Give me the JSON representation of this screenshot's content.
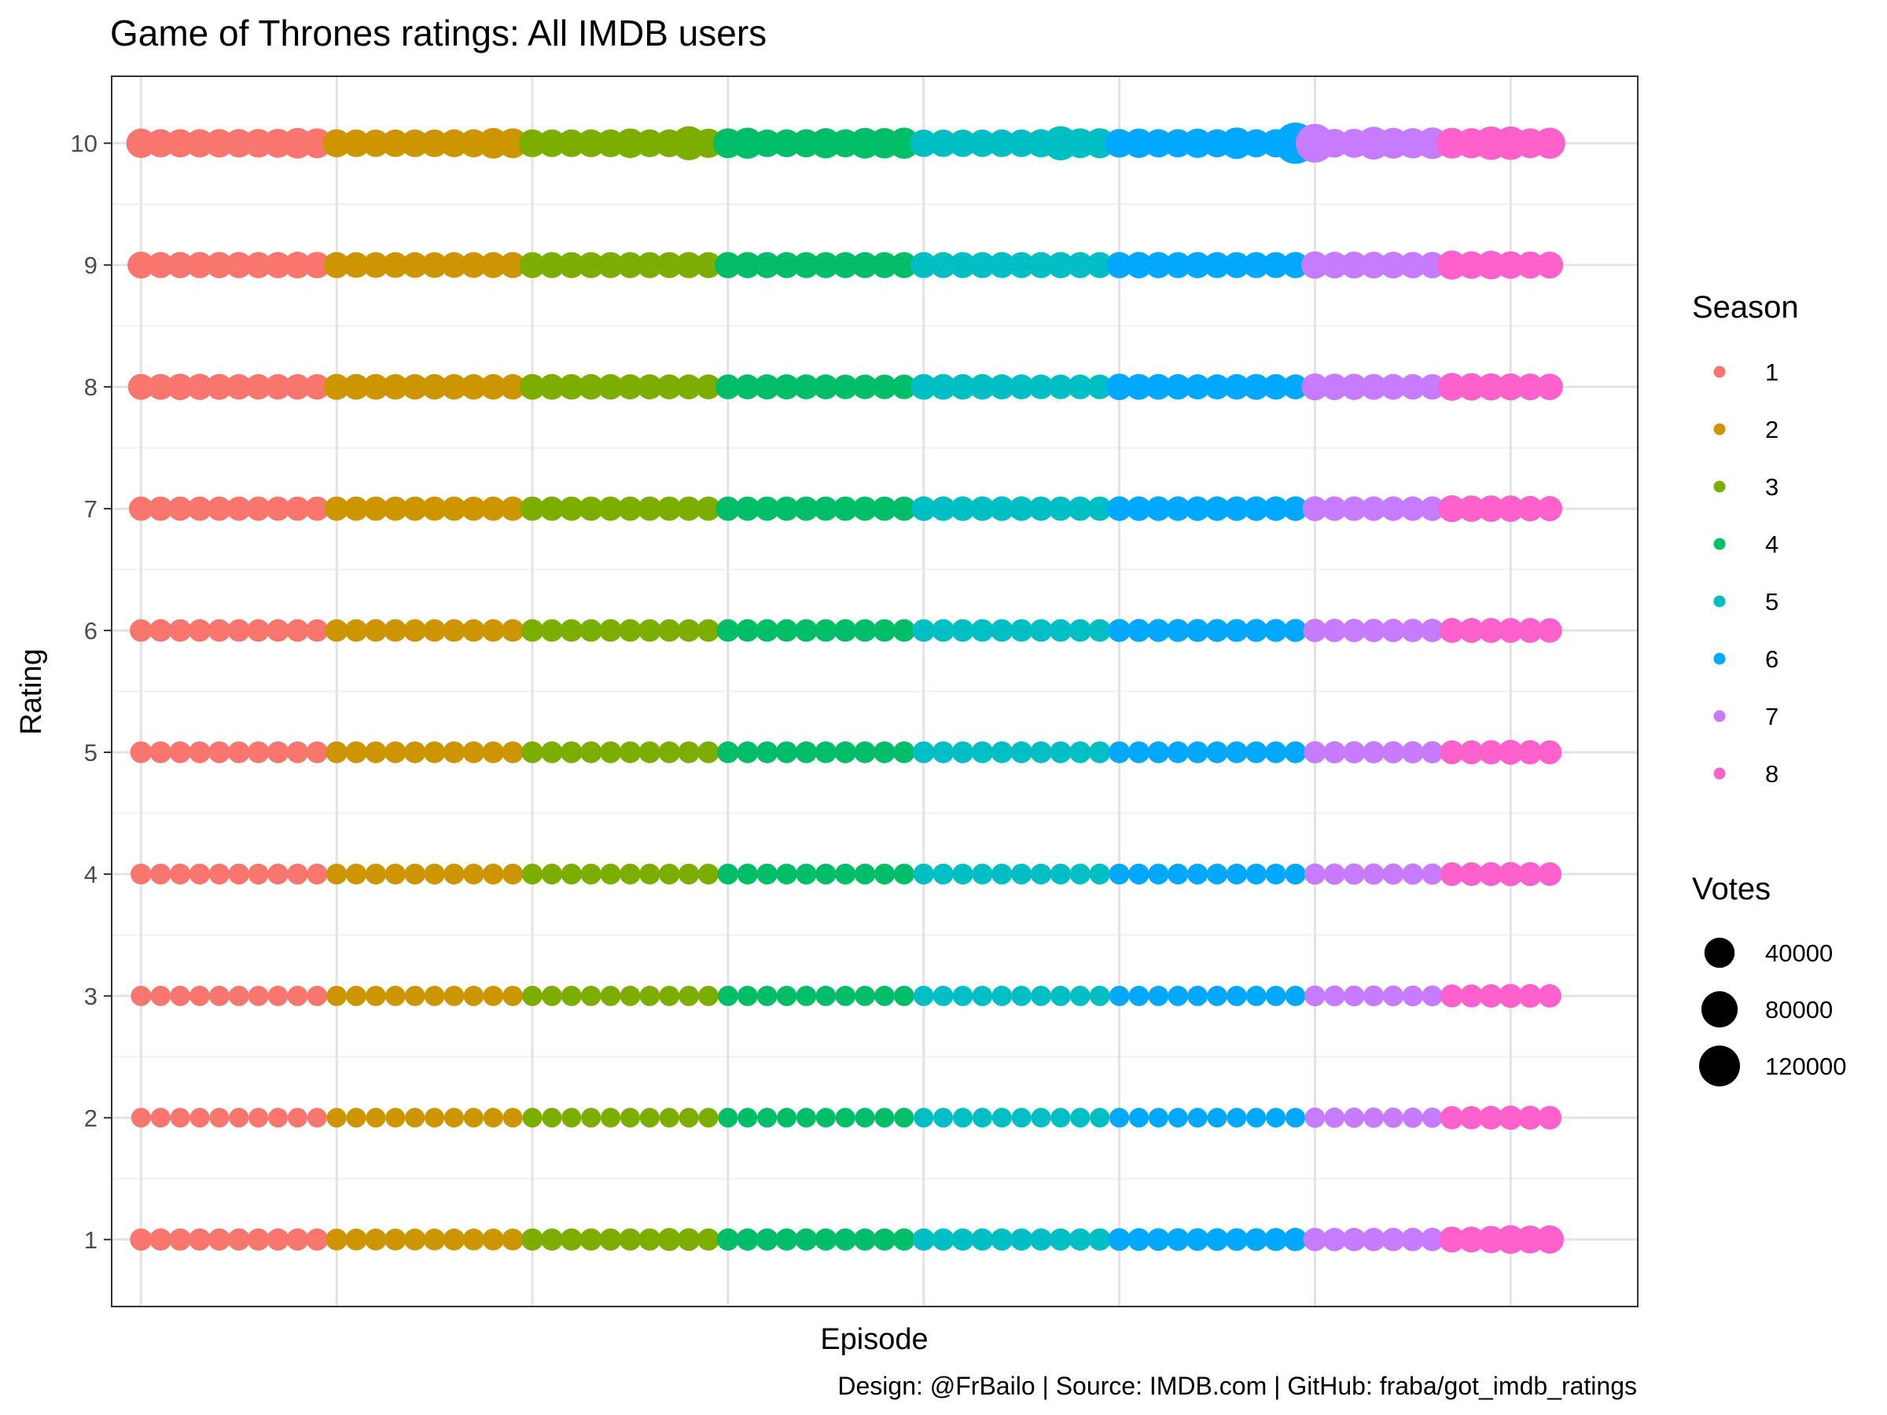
{
  "chart_data": {
    "type": "scatter",
    "title": "Game of Thrones ratings: All IMDB users",
    "xlabel": "Episode",
    "ylabel": "Rating",
    "caption": "Design: @FrBailo | Source: IMDB.com | GitHub: fraba/got_imdb_ratings",
    "xlim": [
      -1.5,
      76.5
    ],
    "ylim": [
      0.45,
      10.55
    ],
    "yticks": [
      1,
      2,
      3,
      4,
      5,
      6,
      7,
      8,
      9,
      10
    ],
    "grid": true,
    "legend_position": "right",
    "colors": {
      "1": "#F8766D",
      "2": "#CD9600",
      "3": "#7CAE00",
      "4": "#00BE67",
      "5": "#00BFC4",
      "6": "#00A9FF",
      "7": "#C77CFF",
      "8": "#FF61CC"
    },
    "season_legend": {
      "title": "Season",
      "entries": [
        "1",
        "2",
        "3",
        "4",
        "5",
        "6",
        "7",
        "8"
      ]
    },
    "votes_legend": {
      "title": "Votes",
      "entries": [
        {
          "label": "40000",
          "value": 40000
        },
        {
          "label": "80000",
          "value": 80000
        },
        {
          "label": "120000",
          "value": 120000
        }
      ]
    },
    "seasons": [
      {
        "name": "1",
        "episodes": 10
      },
      {
        "name": "2",
        "episodes": 10
      },
      {
        "name": "3",
        "episodes": 10
      },
      {
        "name": "4",
        "episodes": 10
      },
      {
        "name": "5",
        "episodes": 10
      },
      {
        "name": "6",
        "episodes": 10
      },
      {
        "name": "7",
        "episodes": 7
      },
      {
        "name": "8",
        "episodes": 6
      }
    ],
    "votes_by_rating": {
      "10": [
        [
          36000,
          30000,
          30000,
          30000,
          31000,
          31000,
          32000,
          33000,
          42000,
          38000
        ],
        [
          29000,
          27000,
          26000,
          26000,
          27000,
          27000,
          28000,
          29000,
          42000,
          38000
        ],
        [
          28000,
          27000,
          27000,
          28000,
          28000,
          37000,
          28000,
          28000,
          64000,
          35000
        ],
        [
          38000,
          45000,
          27000,
          28000,
          29000,
          40000,
          29000,
          43000,
          41000,
          45000
        ],
        [
          26000,
          26000,
          26000,
          26000,
          27000,
          27000,
          30000,
          65000,
          38000,
          39000
        ],
        [
          32000,
          36000,
          30000,
          30000,
          35000,
          29000,
          48000,
          29000,
          30000,
          125000
        ],
        [
          100000,
          32000,
          34000,
          56000,
          43000,
          40000,
          48000
        ],
        [
          43000,
          40000,
          60000,
          60000,
          38000,
          45000
        ]
      ],
      "9": [
        [
          24000,
          20000,
          21000,
          21000,
          21000,
          21000,
          21000,
          21000,
          23000,
          22000
        ],
        [
          20000,
          19000,
          19000,
          19000,
          19000,
          19000,
          19000,
          19000,
          20000,
          20000
        ],
        [
          20000,
          20000,
          20000,
          20000,
          20000,
          20000,
          20000,
          20000,
          21000,
          20000
        ],
        [
          21000,
          21000,
          20000,
          20000,
          20000,
          20000,
          20000,
          20000,
          20000,
          20000
        ],
        [
          20000,
          20000,
          20000,
          20000,
          20000,
          20000,
          20000,
          21000,
          20000,
          20000
        ],
        [
          21000,
          22000,
          21000,
          20000,
          21000,
          20000,
          20000,
          20000,
          20000,
          21000
        ],
        [
          26000,
          23000,
          24000,
          23000,
          23000,
          22000,
          22000
        ],
        [
          34000,
          27000,
          32000,
          27000,
          25000,
          24000
        ]
      ],
      "8": [
        [
          20000,
          20000,
          22000,
          21000,
          20000,
          18000,
          18000,
          18000,
          18000,
          18000
        ],
        [
          20000,
          19000,
          19000,
          18000,
          18000,
          18000,
          18000,
          18000,
          18000,
          18000
        ],
        [
          19000,
          19000,
          18000,
          18000,
          18000,
          17000,
          17000,
          16000,
          16000,
          16000
        ],
        [
          16000,
          16000,
          17000,
          17000,
          16000,
          16000,
          15000,
          15000,
          15000,
          15000
        ],
        [
          19000,
          19000,
          18000,
          18000,
          17000,
          16000,
          15000,
          15000,
          15000,
          15000
        ],
        [
          22000,
          20000,
          19000,
          18000,
          17000,
          17000,
          18000,
          20000,
          18000,
          16000
        ],
        [
          24000,
          22000,
          21000,
          20000,
          19000,
          18000,
          18000
        ],
        [
          28000,
          26000,
          25000,
          24000,
          23000,
          22000
        ]
      ],
      "7": [
        [
          14000,
          14000,
          14000,
          14000,
          14000,
          14000,
          14000,
          14000,
          14000,
          14000
        ],
        [
          14000,
          14000,
          14000,
          14000,
          14000,
          14000,
          14000,
          14000,
          14000,
          14000
        ],
        [
          14000,
          14000,
          14000,
          14000,
          14000,
          14000,
          14000,
          14000,
          14000,
          14000
        ],
        [
          14000,
          14000,
          14000,
          14000,
          14000,
          14000,
          14000,
          14000,
          14000,
          14000
        ],
        [
          15000,
          15000,
          15000,
          15000,
          15000,
          15000,
          14000,
          14000,
          14000,
          14000
        ],
        [
          15000,
          15000,
          15000,
          15000,
          15000,
          15000,
          15000,
          15000,
          15000,
          15000
        ],
        [
          16000,
          15000,
          15000,
          15000,
          15000,
          15000,
          15000
        ],
        [
          24000,
          22000,
          22000,
          22000,
          18000,
          17000
        ]
      ],
      "6": [
        [
          9000,
          9000,
          9000,
          9000,
          9000,
          9000,
          9000,
          9000,
          9000,
          9000
        ],
        [
          9000,
          9000,
          9000,
          9000,
          9000,
          9000,
          9000,
          9000,
          9000,
          9000
        ],
        [
          9000,
          9000,
          9000,
          9000,
          9000,
          9000,
          9000,
          9000,
          9000,
          9000
        ],
        [
          9000,
          9000,
          9000,
          9000,
          9000,
          9000,
          9000,
          9000,
          9000,
          9000
        ],
        [
          9000,
          9000,
          9000,
          9000,
          9000,
          9000,
          9000,
          9000,
          9000,
          9000
        ],
        [
          10000,
          10000,
          10000,
          10000,
          10000,
          10000,
          10000,
          10000,
          10000,
          10000
        ],
        [
          11000,
          11000,
          11000,
          11000,
          11000,
          11000,
          11000
        ],
        [
          16000,
          16000,
          16000,
          16000,
          16000,
          15000
        ]
      ],
      "5": [
        [
          7000,
          7000,
          7000,
          7000,
          7000,
          7000,
          7000,
          7000,
          7000,
          7000
        ],
        [
          7000,
          7000,
          7000,
          7000,
          7000,
          7000,
          7000,
          7000,
          7000,
          7000
        ],
        [
          7000,
          7000,
          7000,
          7000,
          7000,
          7000,
          7000,
          7000,
          7000,
          7000
        ],
        [
          7000,
          7000,
          7000,
          7000,
          7000,
          7000,
          7000,
          7000,
          7000,
          7000
        ],
        [
          7000,
          7000,
          7000,
          7000,
          7000,
          7000,
          7000,
          7000,
          7000,
          7000
        ],
        [
          7000,
          7000,
          7000,
          7000,
          7000,
          7000,
          7000,
          7000,
          7000,
          7000
        ],
        [
          8000,
          8000,
          8000,
          8000,
          8000,
          8000,
          8000
        ],
        [
          13000,
          13000,
          14000,
          16000,
          14000,
          13000
        ]
      ],
      "4": [
        [
          5000,
          5000,
          5000,
          5000,
          5000,
          5000,
          5000,
          5000,
          5000,
          5000
        ],
        [
          5000,
          5000,
          5000,
          5000,
          5000,
          5000,
          5000,
          5000,
          5000,
          5000
        ],
        [
          5000,
          5000,
          5000,
          5000,
          5000,
          5000,
          5000,
          5000,
          5000,
          5000
        ],
        [
          5000,
          5000,
          5000,
          5000,
          5000,
          5000,
          5000,
          5000,
          5000,
          5000
        ],
        [
          5000,
          5000,
          5000,
          5000,
          5000,
          5000,
          5000,
          5000,
          5000,
          5000
        ],
        [
          5000,
          5000,
          5000,
          5000,
          5000,
          5000,
          5000,
          5000,
          5000,
          5000
        ],
        [
          6000,
          6000,
          6000,
          6000,
          6000,
          6000,
          6000
        ],
        [
          12000,
          12000,
          13000,
          14000,
          13000,
          12000
        ]
      ],
      "3": [
        [
          4000,
          4000,
          4000,
          4000,
          4000,
          4000,
          4000,
          4000,
          4000,
          4000
        ],
        [
          4000,
          4000,
          4000,
          4000,
          4000,
          4000,
          4000,
          4000,
          4000,
          4000
        ],
        [
          4000,
          4000,
          4000,
          4000,
          4000,
          4000,
          4000,
          4000,
          4000,
          4000
        ],
        [
          4000,
          4000,
          4000,
          4000,
          4000,
          4000,
          4000,
          4000,
          4000,
          4000
        ],
        [
          4000,
          4000,
          4000,
          4000,
          4000,
          4000,
          4000,
          4000,
          4000,
          4000
        ],
        [
          4000,
          4000,
          4000,
          4000,
          4000,
          4000,
          4000,
          4000,
          4000,
          4000
        ],
        [
          5000,
          5000,
          5000,
          5000,
          5000,
          5000,
          5000
        ],
        [
          10000,
          10000,
          11000,
          13000,
          12000,
          11000
        ]
      ],
      "2": [
        [
          3000,
          3000,
          3000,
          3000,
          3000,
          3000,
          3000,
          3000,
          3000,
          3000
        ],
        [
          3000,
          3000,
          3000,
          3000,
          3000,
          3000,
          3000,
          3000,
          3000,
          3000
        ],
        [
          3000,
          3000,
          3000,
          3000,
          3000,
          3000,
          3000,
          3000,
          3000,
          3000
        ],
        [
          3000,
          3000,
          3000,
          3000,
          3000,
          3000,
          3000,
          3000,
          3000,
          3000
        ],
        [
          3000,
          3000,
          3000,
          3000,
          3000,
          3000,
          3000,
          3000,
          3000,
          3000
        ],
        [
          3000,
          3000,
          3000,
          3000,
          3000,
          3000,
          3000,
          3000,
          3000,
          3000
        ],
        [
          4000,
          4000,
          4000,
          4000,
          4000,
          4000,
          4000
        ],
        [
          11000,
          11000,
          12000,
          14000,
          13000,
          12000
        ]
      ],
      "1": [
        [
          8000,
          8000,
          8000,
          8000,
          8000,
          8000,
          8000,
          8000,
          8000,
          8000
        ],
        [
          7000,
          7000,
          7000,
          7000,
          7000,
          7000,
          7000,
          7000,
          7000,
          7000
        ],
        [
          8000,
          8000,
          8000,
          8000,
          8000,
          8000,
          8000,
          10000,
          9000,
          8000
        ],
        [
          8000,
          8000,
          8000,
          8000,
          8000,
          8000,
          8000,
          8000,
          8000,
          8000
        ],
        [
          8000,
          8000,
          8000,
          8000,
          8000,
          8000,
          8000,
          8000,
          8000,
          8000
        ],
        [
          9000,
          9000,
          9000,
          9000,
          9000,
          9000,
          9000,
          9000,
          10000,
          11000
        ],
        [
          11000,
          11000,
          11000,
          11000,
          11000,
          11000,
          11000
        ],
        [
          20000,
          20000,
          26000,
          32000,
          28000,
          30000
        ]
      ]
    }
  }
}
